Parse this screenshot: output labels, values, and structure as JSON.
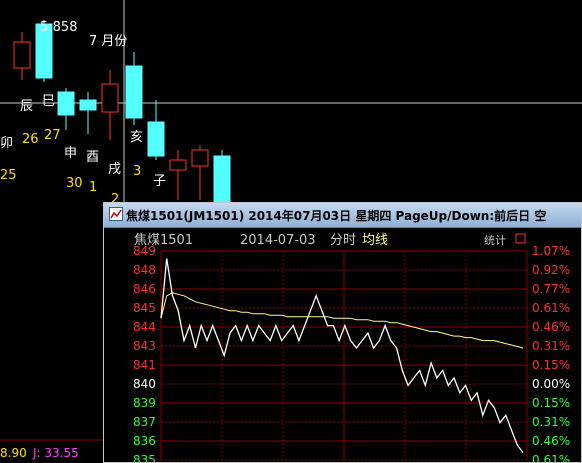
{
  "background_chart": {
    "labels": [
      {
        "text": "5:858",
        "color": "#ffffff"
      },
      {
        "text": "7 月份",
        "color": "#ffffff"
      },
      {
        "text": "辰",
        "color": "#ffffff"
      },
      {
        "text": "巳",
        "color": "#ffffff"
      },
      {
        "text": "卯",
        "color": "#ffffff"
      },
      {
        "text": "26",
        "color": "#ffe000"
      },
      {
        "text": "27",
        "color": "#ffe000"
      },
      {
        "text": "申",
        "color": "#ffffff"
      },
      {
        "text": "酉",
        "color": "#ffffff"
      },
      {
        "text": "戌",
        "color": "#ffffff"
      },
      {
        "text": "3",
        "color": "#ffe000"
      },
      {
        "text": "亥",
        "color": "#ffffff"
      },
      {
        "text": "子",
        "color": "#ffffff"
      },
      {
        "text": "25",
        "color": "#ffe000"
      },
      {
        "text": "30",
        "color": "#ffe000"
      },
      {
        "text": "1",
        "color": "#ffe000"
      },
      {
        "text": "2",
        "color": "#ffe000"
      }
    ],
    "indicator_left": "8.90",
    "indicator_right": "J: 33.55"
  },
  "popup": {
    "title": "焦煤1501(JM1501) 2014年07月03日 星期四 PageUp/Down:前后日 空",
    "symbol": "焦煤1501",
    "date": "2014-07-03",
    "mode": "分时",
    "avg_label": "均线",
    "stats_label": "统计",
    "colors": {
      "up": "#ff3030",
      "down": "#30ff30",
      "neutral": "#ffffff",
      "grid": "#8b0000",
      "avg": "#ffff80"
    }
  },
  "chart_data": {
    "type": "line",
    "price_ticks": [
      849,
      848,
      846,
      845,
      844,
      843,
      841,
      840,
      839,
      837,
      836,
      835
    ],
    "pct_ticks": [
      "1.07%",
      "0.92%",
      "0.77%",
      "0.61%",
      "0.46%",
      "0.31%",
      "0.15%",
      "0.00%",
      "0.15%",
      "0.31%",
      "0.46%",
      "0.61%"
    ],
    "ylim": [
      835,
      849
    ],
    "reference": 840,
    "series": [
      {
        "values": [
          844.5,
          848.5,
          846,
          845,
          843,
          844,
          842.5,
          844,
          843,
          844,
          843,
          842,
          843.5,
          844,
          843,
          844,
          843,
          844,
          843.5,
          843,
          844,
          843,
          843.5,
          844,
          843,
          844,
          845,
          846,
          845,
          844,
          844,
          843,
          844,
          843,
          842.5,
          843,
          843.5,
          842.5,
          843,
          844,
          843,
          842.5,
          841,
          840,
          840.5,
          841,
          840,
          841.5,
          840.5,
          841,
          840,
          840.5,
          839.5,
          840,
          839,
          839.5,
          838,
          839,
          838.5,
          837.5,
          838,
          837,
          836,
          835.5
        ]
      },
      {
        "values": [
          844.5,
          846,
          846.2,
          846.1,
          846,
          845.8,
          845.6,
          845.5,
          845.4,
          845.3,
          845.2,
          845.1,
          845,
          845,
          844.9,
          844.9,
          844.8,
          844.8,
          844.8,
          844.7,
          844.7,
          844.7,
          844.6,
          844.6,
          844.6,
          844.6,
          844.6,
          844.6,
          844.6,
          844.6,
          844.5,
          844.5,
          844.5,
          844.5,
          844.4,
          844.4,
          844.4,
          844.3,
          844.3,
          844.3,
          844.2,
          844.2,
          844.1,
          844,
          843.9,
          843.8,
          843.7,
          843.6,
          843.6,
          843.5,
          843.4,
          843.3,
          843.3,
          843.2,
          843.2,
          843.1,
          843,
          843,
          843,
          842.9,
          842.8,
          842.7,
          842.6,
          842.5
        ]
      }
    ]
  }
}
